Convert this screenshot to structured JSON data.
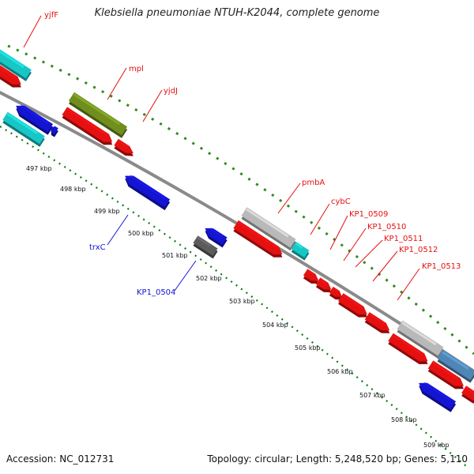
{
  "title": "Klebsiella pneumoniae NTUH-K2044, complete genome",
  "footer": {
    "accession": "Accession: NC_012731",
    "topology": "Topology: circular; Length: 5,248,520 bp; Genes: 5,110"
  },
  "colors": {
    "forward_gene": "#e51010",
    "reverse_gene": "#1414d2",
    "rna_gene": "#18c6c6",
    "olive_gene": "#6f8e1e",
    "grey_gene": "#b9b9b9",
    "dark_grey_gene": "#5c5c5c",
    "steel_gene": "#4f86b5",
    "backbone": "#8a8a8a",
    "tick_dots": "#0b7a12",
    "gc_dashes": "#2f8a1a"
  },
  "kbp_ticks": [
    "497 kbp",
    "498 kbp",
    "499 kbp",
    "500 kbp",
    "501 kbp",
    "502 kbp",
    "503 kbp",
    "504 kbp",
    "505 kbp",
    "506 kbp",
    "507 kbp",
    "508 kbp",
    "509 kbp"
  ],
  "gene_labels": {
    "forward": [
      "yjfF",
      "mpl",
      "yjdJ",
      "pmbA",
      "cybC",
      "KP1_0509",
      "KP1_0510",
      "KP1_0511",
      "KP1_0512",
      "KP1_0513"
    ],
    "reverse": [
      "trxC",
      "KP1_0504"
    ]
  }
}
